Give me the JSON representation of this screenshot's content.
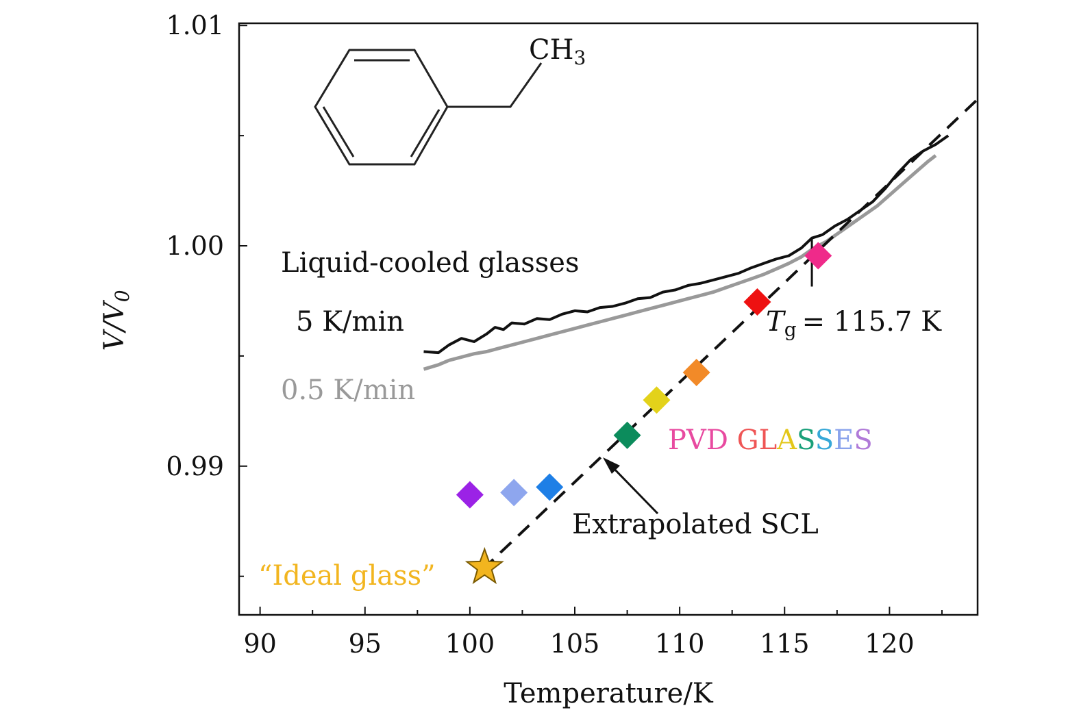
{
  "chart_data": {
    "type": "scatter",
    "xlabel": "Temperature/K",
    "ylabel": "V/V",
    "ylabel_sub": "0",
    "xlim": [
      89,
      124.2
    ],
    "ylim": [
      0.98325,
      1.0101
    ],
    "x_ticks": [
      90,
      95,
      100,
      105,
      110,
      115,
      120
    ],
    "x_tick_labels": [
      "90",
      "95",
      "100",
      "105",
      "110",
      "115",
      "120"
    ],
    "y_ticks": [
      0.99,
      1.0,
      1.01
    ],
    "y_tick_labels": [
      "0.99",
      "1.00",
      "1.01"
    ],
    "y_minor_ticks": [
      0.985,
      0.995,
      1.005
    ],
    "series": [
      {
        "name": "5 K/min",
        "style": "line",
        "color": "#111111",
        "x": [
          97.8,
          98.5,
          99,
          99.6,
          100.2,
          100.8,
          101.2,
          101.6,
          102,
          102.6,
          103.2,
          103.8,
          104.4,
          105,
          105.6,
          106.2,
          106.8,
          107.4,
          108,
          108.6,
          109.2,
          109.8,
          110.4,
          111,
          111.6,
          112.2,
          112.8,
          113.4,
          114,
          114.6,
          115.2,
          115.8,
          116.3,
          116.8,
          117.4,
          118,
          118.6,
          119.2,
          119.8,
          120.4,
          121,
          121.6,
          122.2,
          122.8
        ],
        "y": [
          0.9952,
          0.99515,
          0.9955,
          0.9958,
          0.99565,
          0.996,
          0.9963,
          0.9962,
          0.9965,
          0.99645,
          0.9967,
          0.99665,
          0.9969,
          0.99705,
          0.997,
          0.9972,
          0.99725,
          0.9974,
          0.9976,
          0.99765,
          0.9979,
          0.998,
          0.9982,
          0.9983,
          0.99845,
          0.9986,
          0.99875,
          0.999,
          0.9992,
          0.9994,
          0.99955,
          0.9999,
          1.00035,
          1.0005,
          1.0009,
          1.0012,
          1.0016,
          1.002,
          1.0026,
          1.0033,
          1.0039,
          1.0043,
          1.0046,
          1.005
        ]
      },
      {
        "name": "0.5 K/min",
        "style": "line",
        "color": "#999999",
        "x": [
          97.8,
          98.5,
          99,
          99.6,
          100.2,
          100.8,
          101.4,
          102,
          102.6,
          103.2,
          103.8,
          104.4,
          105,
          105.6,
          106.2,
          106.8,
          107.4,
          108,
          108.6,
          109.2,
          109.8,
          110.4,
          111,
          111.6,
          112.2,
          112.8,
          113.4,
          114,
          114.6,
          115.2,
          115.8,
          116.4,
          117,
          117.6,
          118.2,
          118.8,
          119.4,
          120,
          120.6,
          121.2,
          121.8,
          122.2
        ],
        "y": [
          0.9944,
          0.9946,
          0.9948,
          0.99495,
          0.9951,
          0.9952,
          0.99535,
          0.9955,
          0.99565,
          0.9958,
          0.99595,
          0.9961,
          0.99625,
          0.9964,
          0.99655,
          0.9967,
          0.99685,
          0.997,
          0.99715,
          0.9973,
          0.99745,
          0.9976,
          0.99775,
          0.9979,
          0.9981,
          0.9983,
          0.9985,
          0.9987,
          0.99895,
          0.9992,
          0.9995,
          0.9999,
          1.0002,
          1.0006,
          1.001,
          1.0014,
          1.0018,
          1.0023,
          1.0028,
          1.0033,
          1.0038,
          1.0041
        ]
      },
      {
        "name": "Extrapolated SCL",
        "style": "dashed",
        "color": "#111111",
        "x": [
          100.6,
          124.2
        ],
        "y": [
          0.9853,
          1.00665
        ]
      },
      {
        "name": "PVD GLASSES",
        "style": "markers",
        "points": [
          {
            "x": 100.0,
            "y": 0.9887,
            "color": "#9b22e6"
          },
          {
            "x": 102.1,
            "y": 0.9888,
            "color": "#8ea6ee"
          },
          {
            "x": 103.8,
            "y": 0.98905,
            "color": "#1e7fe6"
          },
          {
            "x": 107.5,
            "y": 0.9914,
            "color": "#0c8c5c"
          },
          {
            "x": 108.9,
            "y": 0.993,
            "color": "#e3d21a"
          },
          {
            "x": 110.8,
            "y": 0.99425,
            "color": "#f28a28"
          },
          {
            "x": 113.7,
            "y": 0.99745,
            "color": "#ee1111"
          },
          {
            "x": 116.6,
            "y": 0.99955,
            "color": "#ef2a8a"
          }
        ]
      },
      {
        "name": "“Ideal glass”",
        "style": "star",
        "color": "#f2b51f",
        "x": [
          100.7
        ],
        "y": [
          0.9854
        ]
      }
    ],
    "tg_marker": {
      "x": 116.3,
      "y_top": 1.00035,
      "y_bottom": 0.99815
    }
  },
  "annotations": {
    "legend_title": "Liquid-cooled glasses",
    "rate_fast": "5 K/min",
    "rate_slow": "0.5 K/min",
    "tg_symbol": "T",
    "tg_sub": "g",
    "tg_value": "= 115.7 K",
    "pvd_letters": [
      {
        "ch": "P",
        "color": "#e84aa0"
      },
      {
        "ch": "V",
        "color": "#e84aa0"
      },
      {
        "ch": "D",
        "color": "#e84aa0"
      },
      {
        "ch": " ",
        "color": "#e84aa0"
      },
      {
        "ch": "G",
        "color": "#ef5555"
      },
      {
        "ch": "L",
        "color": "#ef5555"
      },
      {
        "ch": "A",
        "color": "#e3c71a"
      },
      {
        "ch": "S",
        "color": "#1aa07a"
      },
      {
        "ch": "S",
        "color": "#37a8d8"
      },
      {
        "ch": "E",
        "color": "#8aa3ec"
      },
      {
        "ch": "S",
        "color": "#b07ad8"
      }
    ],
    "scl_label": "Extrapolated SCL",
    "ideal_label": "“Ideal glass”",
    "molecule_group": "CH",
    "molecule_sub": "3"
  },
  "colors": {
    "axis": "#111111",
    "ideal": "#f2b51f",
    "slow_rate": "#999999"
  }
}
